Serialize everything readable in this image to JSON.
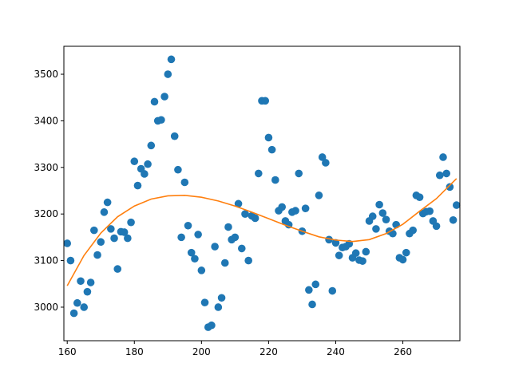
{
  "chart_data": {
    "type": "scatter",
    "title": "",
    "xlabel": "",
    "ylabel": "",
    "xlim": [
      159,
      277
    ],
    "ylim": [
      2928,
      3560
    ],
    "grid": false,
    "legend": "none",
    "xticks": [
      160,
      180,
      200,
      220,
      240,
      260
    ],
    "yticks": [
      3000,
      3100,
      3200,
      3300,
      3400,
      3500
    ],
    "colors": {
      "points": "#1f77b4",
      "fit": "#ff7f0e"
    },
    "series": [
      {
        "kind": "scatter",
        "x": [
          160,
          161,
          162,
          163,
          164,
          165,
          166,
          167,
          168,
          169,
          170,
          171,
          172,
          173,
          174,
          175,
          176,
          177,
          178,
          179,
          180,
          181,
          182,
          183,
          184,
          185,
          186,
          187,
          188,
          189,
          190,
          191,
          192,
          193,
          194,
          195,
          196,
          197,
          198,
          199,
          200,
          201,
          202,
          203,
          204,
          205,
          206,
          207,
          208,
          209,
          210,
          211,
          212,
          213,
          214,
          215,
          216,
          217,
          218,
          219,
          220,
          221,
          222,
          223,
          224,
          225,
          226,
          227,
          228,
          229,
          230,
          231,
          232,
          233,
          234,
          235,
          236,
          237,
          238,
          239,
          240,
          241,
          242,
          243,
          244,
          245,
          246,
          247,
          248,
          249,
          250,
          251,
          252,
          253,
          254,
          255,
          256,
          257,
          258,
          259,
          260,
          261,
          262,
          263,
          264,
          265,
          266,
          267,
          268,
          269,
          270,
          271,
          272,
          273,
          274,
          275,
          276
        ],
        "y": [
          3137,
          3100,
          2987,
          3009,
          3056,
          3000,
          3033,
          3053,
          3165,
          3112,
          3140,
          3204,
          3225,
          3168,
          3148,
          3082,
          3162,
          3161,
          3148,
          3182,
          3313,
          3261,
          3297,
          3286,
          3307,
          3347,
          3441,
          3400,
          3402,
          3452,
          3500,
          3532,
          3367,
          3295,
          3150,
          3268,
          3175,
          3117,
          3104,
          3156,
          3079,
          3010,
          2957,
          2961,
          3130,
          3000,
          3020,
          3095,
          3172,
          3145,
          3150,
          3222,
          3126,
          3200,
          3100,
          3196,
          3191,
          3287,
          3443,
          3443,
          3364,
          3338,
          3273,
          3207,
          3215,
          3185,
          3177,
          3204,
          3207,
          3287,
          3163,
          3212,
          3037,
          3006,
          3049,
          3240,
          3322,
          3310,
          3145,
          3035,
          3138,
          3111,
          3128,
          3130,
          3136,
          3106,
          3116,
          3101,
          3099,
          3119,
          3185,
          3195,
          3168,
          3220,
          3202,
          3188,
          3163,
          3158,
          3177,
          3106,
          3102,
          3117,
          3158,
          3165,
          3240,
          3236,
          3201,
          3205,
          3206,
          3185,
          3174,
          3283,
          3322,
          3287,
          3258,
          3187,
          3219
        ]
      },
      {
        "kind": "line",
        "x": [
          160,
          165,
          170,
          175,
          180,
          185,
          190,
          195,
          200,
          205,
          210,
          215,
          220,
          225,
          230,
          235,
          240,
          245,
          250,
          255,
          260,
          265,
          270,
          276
        ],
        "y": [
          3046,
          3111,
          3159,
          3194,
          3217,
          3232,
          3239,
          3240,
          3236,
          3228,
          3217,
          3204,
          3190,
          3176,
          3163,
          3151,
          3144,
          3141,
          3145,
          3158,
          3178,
          3206,
          3233,
          3276
        ]
      }
    ]
  }
}
